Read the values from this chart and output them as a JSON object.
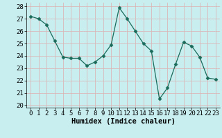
{
  "x": [
    0,
    1,
    2,
    3,
    4,
    5,
    6,
    7,
    8,
    9,
    10,
    11,
    12,
    13,
    14,
    15,
    16,
    17,
    18,
    19,
    20,
    21,
    22,
    23
  ],
  "y": [
    27.2,
    27.0,
    26.5,
    25.2,
    23.9,
    23.8,
    23.8,
    23.2,
    23.5,
    24.0,
    24.9,
    27.9,
    27.0,
    26.0,
    25.0,
    24.4,
    20.5,
    21.4,
    23.3,
    25.1,
    24.8,
    23.9,
    22.2,
    22.1
  ],
  "line_color": "#1a6b5a",
  "marker": "D",
  "marker_size": 2.5,
  "bg_color": "#c8eef0",
  "grid_color": "#dbb8b8",
  "xlabel": "Humidex (Indice chaleur)",
  "ylim": [
    19.8,
    28.3
  ],
  "yticks": [
    20,
    21,
    22,
    23,
    24,
    25,
    26,
    27,
    28
  ],
  "xticks": [
    0,
    1,
    2,
    3,
    4,
    5,
    6,
    7,
    8,
    9,
    10,
    11,
    12,
    13,
    14,
    15,
    16,
    17,
    18,
    19,
    20,
    21,
    22,
    23
  ],
  "tick_label_size": 6.5,
  "xlabel_size": 7.5
}
